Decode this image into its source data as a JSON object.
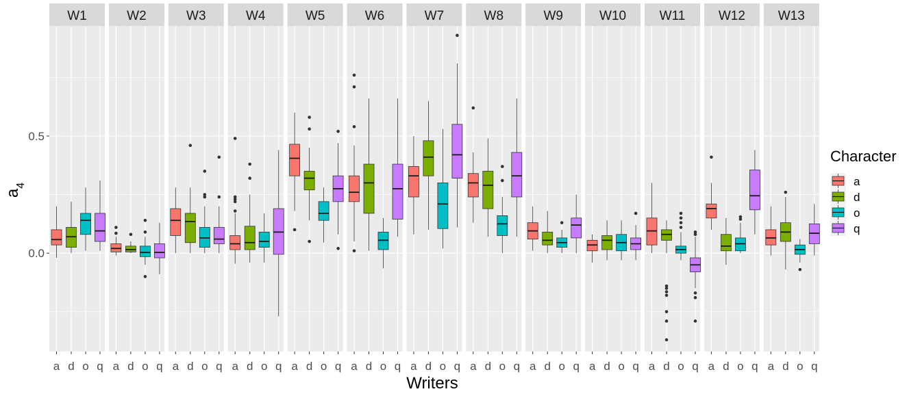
{
  "chart_data": {
    "type": "boxplot",
    "facet_variable": "Writers",
    "xlabel": "Writers",
    "ylabel_base": "a",
    "ylabel_subscript": "4",
    "ylim": [
      -0.42,
      0.97
    ],
    "yticks": [
      0.0,
      0.5
    ],
    "ytick_labels": [
      "0.0",
      "0.5"
    ],
    "categories": [
      "a",
      "d",
      "o",
      "q"
    ],
    "legend": {
      "title": "Character",
      "entries": [
        "a",
        "d",
        "o",
        "q"
      ],
      "colors": [
        "#F8766D",
        "#7CAE00",
        "#00BFC4",
        "#C77CFF"
      ]
    },
    "panels": [
      {
        "name": "W1",
        "boxes": [
          {
            "cat": "a",
            "q1": 0.035,
            "median": 0.058,
            "q3": 0.1,
            "low": -0.02,
            "high": 0.2,
            "outliers": []
          },
          {
            "cat": "d",
            "q1": 0.025,
            "median": 0.07,
            "q3": 0.11,
            "low": 0.0,
            "high": 0.22,
            "outliers": []
          },
          {
            "cat": "o",
            "q1": 0.08,
            "median": 0.14,
            "q3": 0.17,
            "low": 0.01,
            "high": 0.28,
            "outliers": []
          },
          {
            "cat": "q",
            "q1": 0.05,
            "median": 0.095,
            "q3": 0.17,
            "low": 0.01,
            "high": 0.31,
            "outliers": []
          }
        ]
      },
      {
        "name": "W2",
        "boxes": [
          {
            "cat": "a",
            "q1": 0.005,
            "median": 0.02,
            "q3": 0.04,
            "low": -0.01,
            "high": 0.07,
            "outliers": [
              0.085,
              0.11
            ]
          },
          {
            "cat": "d",
            "q1": 0.005,
            "median": 0.015,
            "q3": 0.03,
            "low": 0.0,
            "high": 0.05,
            "outliers": [
              0.08
            ]
          },
          {
            "cat": "o",
            "q1": -0.015,
            "median": 0.003,
            "q3": 0.03,
            "low": -0.05,
            "high": 0.07,
            "outliers": [
              0.09,
              0.14,
              -0.1
            ]
          },
          {
            "cat": "q",
            "q1": -0.02,
            "median": 0.003,
            "q3": 0.04,
            "low": -0.09,
            "high": 0.13,
            "outliers": []
          }
        ]
      },
      {
        "name": "W3",
        "boxes": [
          {
            "cat": "a",
            "q1": 0.075,
            "median": 0.14,
            "q3": 0.19,
            "low": 0.0,
            "high": 0.28,
            "outliers": []
          },
          {
            "cat": "d",
            "q1": 0.045,
            "median": 0.135,
            "q3": 0.17,
            "low": 0.0,
            "high": 0.28,
            "outliers": [
              0.46
            ]
          },
          {
            "cat": "o",
            "q1": 0.025,
            "median": 0.065,
            "q3": 0.11,
            "low": 0.0,
            "high": 0.2,
            "outliers": [
              0.24,
              0.25,
              0.35
            ]
          },
          {
            "cat": "q",
            "q1": 0.04,
            "median": 0.06,
            "q3": 0.11,
            "low": 0.0,
            "high": 0.2,
            "outliers": [
              0.24,
              0.41
            ]
          }
        ]
      },
      {
        "name": "W4",
        "boxes": [
          {
            "cat": "a",
            "q1": 0.015,
            "median": 0.04,
            "q3": 0.075,
            "low": -0.045,
            "high": 0.17,
            "outliers": [
              0.18,
              0.22,
              0.23,
              0.24,
              0.49
            ]
          },
          {
            "cat": "d",
            "q1": 0.015,
            "median": 0.045,
            "q3": 0.115,
            "low": -0.04,
            "high": 0.25,
            "outliers": [
              0.32,
              0.38
            ]
          },
          {
            "cat": "o",
            "q1": 0.025,
            "median": 0.05,
            "q3": 0.09,
            "low": -0.04,
            "high": 0.17,
            "outliers": []
          },
          {
            "cat": "q",
            "q1": -0.005,
            "median": 0.09,
            "q3": 0.19,
            "low": -0.27,
            "high": 0.44,
            "outliers": []
          }
        ]
      },
      {
        "name": "W5",
        "boxes": [
          {
            "cat": "a",
            "q1": 0.33,
            "median": 0.405,
            "q3": 0.465,
            "low": 0.18,
            "high": 0.6,
            "outliers": [
              0.1
            ]
          },
          {
            "cat": "d",
            "q1": 0.27,
            "median": 0.32,
            "q3": 0.35,
            "low": 0.14,
            "high": 0.45,
            "outliers": [
              0.05,
              0.53,
              0.58
            ]
          },
          {
            "cat": "o",
            "q1": 0.14,
            "median": 0.17,
            "q3": 0.22,
            "low": 0.045,
            "high": 0.28,
            "outliers": []
          },
          {
            "cat": "q",
            "q1": 0.22,
            "median": 0.275,
            "q3": 0.33,
            "low": 0.08,
            "high": 0.47,
            "outliers": [
              0.02,
              0.52
            ]
          }
        ]
      },
      {
        "name": "W6",
        "boxes": [
          {
            "cat": "a",
            "q1": 0.22,
            "median": 0.26,
            "q3": 0.33,
            "low": 0.05,
            "high": 0.46,
            "outliers": [
              0.01,
              0.54,
              0.71,
              0.76
            ]
          },
          {
            "cat": "d",
            "q1": 0.17,
            "median": 0.3,
            "q3": 0.38,
            "low": 0.01,
            "high": 0.66,
            "outliers": []
          },
          {
            "cat": "o",
            "q1": 0.015,
            "median": 0.055,
            "q3": 0.09,
            "low": -0.065,
            "high": 0.15,
            "outliers": []
          },
          {
            "cat": "q",
            "q1": 0.145,
            "median": 0.275,
            "q3": 0.38,
            "low": 0.07,
            "high": 0.66,
            "outliers": []
          }
        ]
      },
      {
        "name": "W7",
        "boxes": [
          {
            "cat": "a",
            "q1": 0.24,
            "median": 0.33,
            "q3": 0.37,
            "low": 0.08,
            "high": 0.5,
            "outliers": []
          },
          {
            "cat": "d",
            "q1": 0.33,
            "median": 0.41,
            "q3": 0.48,
            "low": 0.1,
            "high": 0.65,
            "outliers": []
          },
          {
            "cat": "o",
            "q1": 0.105,
            "median": 0.21,
            "q3": 0.3,
            "low": 0.02,
            "high": 0.53,
            "outliers": []
          },
          {
            "cat": "q",
            "q1": 0.32,
            "median": 0.42,
            "q3": 0.55,
            "low": 0.11,
            "high": 0.81,
            "outliers": [
              0.93
            ]
          }
        ]
      },
      {
        "name": "W8",
        "boxes": [
          {
            "cat": "a",
            "q1": 0.24,
            "median": 0.3,
            "q3": 0.34,
            "low": 0.13,
            "high": 0.43,
            "outliers": [
              0.62
            ]
          },
          {
            "cat": "d",
            "q1": 0.19,
            "median": 0.29,
            "q3": 0.35,
            "low": 0.07,
            "high": 0.49,
            "outliers": []
          },
          {
            "cat": "o",
            "q1": 0.075,
            "median": 0.125,
            "q3": 0.16,
            "low": 0.0,
            "high": 0.24,
            "outliers": [
              0.31,
              0.37
            ]
          },
          {
            "cat": "q",
            "q1": 0.24,
            "median": 0.33,
            "q3": 0.43,
            "low": 0.07,
            "high": 0.66,
            "outliers": []
          }
        ]
      },
      {
        "name": "W9",
        "boxes": [
          {
            "cat": "a",
            "q1": 0.06,
            "median": 0.095,
            "q3": 0.13,
            "low": 0.01,
            "high": 0.2,
            "outliers": []
          },
          {
            "cat": "d",
            "q1": 0.035,
            "median": 0.055,
            "q3": 0.09,
            "low": 0.0,
            "high": 0.18,
            "outliers": []
          },
          {
            "cat": "o",
            "q1": 0.025,
            "median": 0.045,
            "q3": 0.065,
            "low": 0.0,
            "high": 0.1,
            "outliers": [
              0.13
            ]
          },
          {
            "cat": "q",
            "q1": 0.065,
            "median": 0.12,
            "q3": 0.15,
            "low": 0.0,
            "high": 0.25,
            "outliers": []
          }
        ]
      },
      {
        "name": "W10",
        "boxes": [
          {
            "cat": "a",
            "q1": 0.01,
            "median": 0.035,
            "q3": 0.055,
            "low": -0.04,
            "high": 0.08,
            "outliers": []
          },
          {
            "cat": "d",
            "q1": 0.015,
            "median": 0.055,
            "q3": 0.075,
            "low": -0.03,
            "high": 0.14,
            "outliers": []
          },
          {
            "cat": "o",
            "q1": 0.01,
            "median": 0.045,
            "q3": 0.08,
            "low": -0.03,
            "high": 0.14,
            "outliers": []
          },
          {
            "cat": "q",
            "q1": 0.015,
            "median": 0.04,
            "q3": 0.065,
            "low": -0.03,
            "high": 0.12,
            "outliers": [
              0.17
            ]
          }
        ]
      },
      {
        "name": "W11",
        "boxes": [
          {
            "cat": "a",
            "q1": 0.035,
            "median": 0.095,
            "q3": 0.15,
            "low": 0.0,
            "high": 0.3,
            "outliers": []
          },
          {
            "cat": "d",
            "q1": 0.055,
            "median": 0.08,
            "q3": 0.1,
            "low": 0.0,
            "high": 0.14,
            "outliers": [
              -0.14,
              -0.15,
              -0.165,
              -0.18,
              -0.25,
              -0.29,
              -0.37
            ]
          },
          {
            "cat": "o",
            "q1": 0.0,
            "median": 0.015,
            "q3": 0.03,
            "low": -0.03,
            "high": 0.09,
            "outliers": [
              0.11,
              0.13,
              0.15,
              0.17
            ]
          },
          {
            "cat": "q",
            "q1": -0.08,
            "median": -0.05,
            "q3": -0.02,
            "low": -0.15,
            "high": 0.07,
            "outliers": [
              0.08,
              0.09,
              -0.17,
              -0.19,
              -0.29
            ]
          }
        ]
      },
      {
        "name": "W12",
        "boxes": [
          {
            "cat": "a",
            "q1": 0.15,
            "median": 0.19,
            "q3": 0.21,
            "low": 0.1,
            "high": 0.3,
            "outliers": [
              0.41
            ]
          },
          {
            "cat": "d",
            "q1": 0.01,
            "median": 0.03,
            "q3": 0.08,
            "low": -0.05,
            "high": 0.15,
            "outliers": []
          },
          {
            "cat": "o",
            "q1": 0.01,
            "median": 0.04,
            "q3": 0.065,
            "low": 0.0,
            "high": 0.13,
            "outliers": [
              0.145,
              0.155
            ]
          },
          {
            "cat": "q",
            "q1": 0.185,
            "median": 0.245,
            "q3": 0.355,
            "low": 0.08,
            "high": 0.44,
            "outliers": []
          }
        ]
      },
      {
        "name": "W13",
        "boxes": [
          {
            "cat": "a",
            "q1": 0.035,
            "median": 0.065,
            "q3": 0.1,
            "low": -0.01,
            "high": 0.2,
            "outliers": []
          },
          {
            "cat": "d",
            "q1": 0.05,
            "median": 0.09,
            "q3": 0.13,
            "low": -0.07,
            "high": 0.24,
            "outliers": [
              0.26
            ]
          },
          {
            "cat": "o",
            "q1": -0.005,
            "median": 0.015,
            "q3": 0.035,
            "low": -0.04,
            "high": 0.06,
            "outliers": [
              -0.07
            ]
          },
          {
            "cat": "q",
            "q1": 0.04,
            "median": 0.085,
            "q3": 0.125,
            "low": -0.01,
            "high": 0.21,
            "outliers": []
          }
        ]
      }
    ]
  }
}
